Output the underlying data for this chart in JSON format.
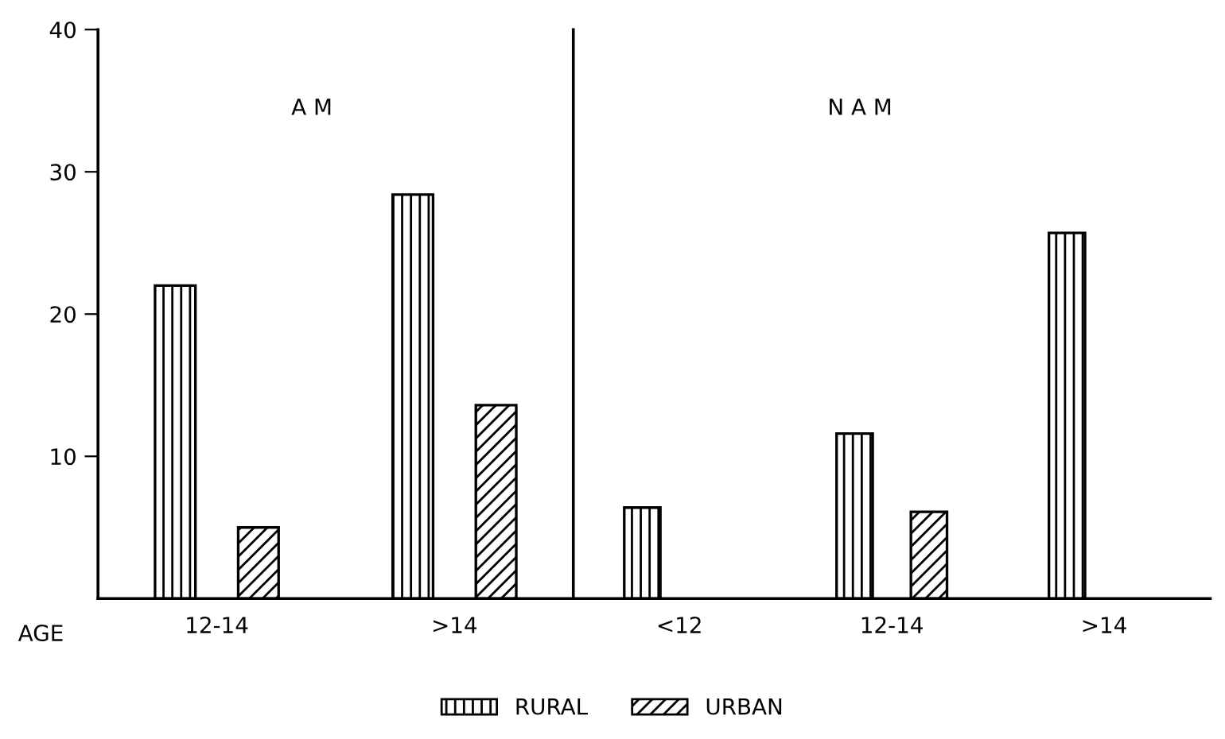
{
  "chart_data": [
    {
      "type": "bar",
      "xlabel": "AGE",
      "annotations": [
        "A M"
      ],
      "categories": [
        "12-14",
        ">14"
      ],
      "series": [
        {
          "name": "RURAL",
          "color": "#000000",
          "values": [
            22.0,
            28.4
          ]
        },
        {
          "name": "URBAN",
          "color": "#000000",
          "values": [
            5.0,
            13.6
          ]
        }
      ],
      "ylim": [
        0,
        40
      ],
      "yticks": [
        10,
        20,
        30,
        40
      ],
      "legend": "bottom"
    },
    {
      "type": "bar",
      "annotations": [
        "N A M"
      ],
      "categories": [
        "<12",
        "12-14",
        ">14"
      ],
      "series": [
        {
          "name": "RURAL",
          "color": "#000000",
          "values": [
            6.4,
            11.6,
            25.7
          ]
        },
        {
          "name": "URBAN",
          "color": "#000000",
          "values": [
            null,
            6.1,
            null
          ]
        }
      ],
      "ylim": [
        0,
        40
      ],
      "tick_labels": "x"
    }
  ]
}
